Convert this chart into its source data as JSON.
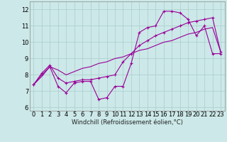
{
  "title": "",
  "xlabel": "Windchill (Refroidissement éolien,°C)",
  "ylabel": "",
  "background_color": "#cce8e8",
  "line_color": "#990099",
  "grid_color": "#aacccc",
  "xlim": [
    -0.5,
    23.5
  ],
  "ylim": [
    5.8,
    12.5
  ],
  "yticks": [
    6,
    7,
    8,
    9,
    10,
    11,
    12
  ],
  "xticks": [
    0,
    1,
    2,
    3,
    4,
    5,
    6,
    7,
    8,
    9,
    10,
    11,
    12,
    13,
    14,
    15,
    16,
    17,
    18,
    19,
    20,
    21,
    22,
    23
  ],
  "line1": [
    7.4,
    8.0,
    8.5,
    7.3,
    6.9,
    7.5,
    7.6,
    7.6,
    6.5,
    6.6,
    7.3,
    7.3,
    8.7,
    10.6,
    10.9,
    11.0,
    11.9,
    11.9,
    11.8,
    11.4,
    10.4,
    11.0,
    9.3,
    9.3
  ],
  "line2": [
    7.4,
    8.1,
    8.6,
    7.8,
    7.5,
    7.6,
    7.7,
    7.7,
    7.8,
    7.9,
    8.0,
    8.8,
    9.3,
    9.8,
    10.1,
    10.4,
    10.6,
    10.8,
    11.0,
    11.2,
    11.3,
    11.4,
    11.5,
    9.4
  ],
  "line3": [
    7.4,
    7.9,
    8.5,
    8.3,
    8.0,
    8.2,
    8.4,
    8.5,
    8.7,
    8.8,
    9.0,
    9.1,
    9.3,
    9.5,
    9.6,
    9.8,
    10.0,
    10.1,
    10.3,
    10.5,
    10.6,
    10.8,
    10.9,
    9.4
  ],
  "tick_fontsize": 6,
  "xlabel_fontsize": 6
}
